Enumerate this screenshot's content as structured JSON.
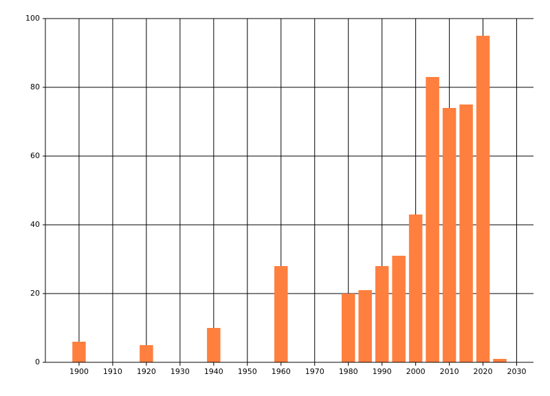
{
  "chart_data": {
    "type": "bar",
    "x": [
      1900,
      1920,
      1940,
      1960,
      1980,
      1985,
      1990,
      1995,
      2000,
      2005,
      2010,
      2015,
      2020,
      2025
    ],
    "values": [
      6,
      5,
      10,
      28,
      20,
      21,
      28,
      31,
      43,
      83,
      74,
      75,
      95,
      1
    ],
    "color": "#ff7f3f",
    "xlim": [
      1890,
      2035
    ],
    "xticks": [
      1900,
      1910,
      1920,
      1930,
      1940,
      1950,
      1960,
      1970,
      1980,
      1990,
      2000,
      2010,
      2020,
      2030
    ],
    "ylim": [
      0,
      100
    ],
    "yticks": [
      0,
      20,
      40,
      60,
      80,
      100
    ],
    "grid": true
  }
}
